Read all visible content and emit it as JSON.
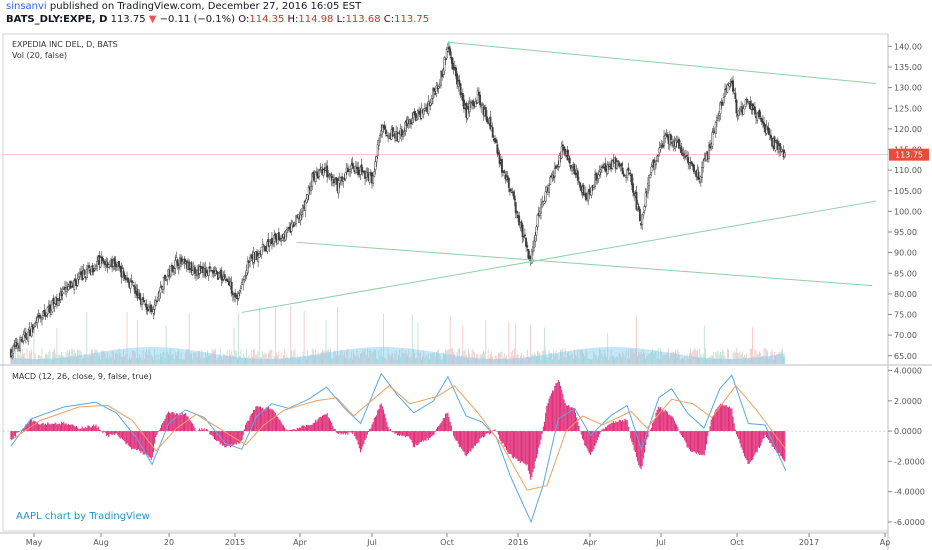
{
  "header": {
    "user": "sinsanvi",
    "published": "published on TradingView.com, December 27, 2016 16:05 EST",
    "symbol": "BATS_DLY:EXPE, D",
    "last": "113.75",
    "arrow": "▼",
    "change": "−0.11 (−0.1%)",
    "o_label": "O:",
    "o_value": "114.35",
    "h_label": "H:",
    "h_value": "114.98",
    "l_label": "L:",
    "l_value": "113.68",
    "c_label": "C:",
    "c_value": "113.75"
  },
  "colors": {
    "up": "#26a69a",
    "down": "#ef5350",
    "candle_body": "#3d3d3d",
    "trendline": "#8ecfa8",
    "volume": "#7fc8e8",
    "macd": "#5aa8e6",
    "signal": "#f0a060",
    "histogram": "#e0307a",
    "price_badge": "#e74c3c"
  },
  "chart_data": [
    {
      "type": "candlestick",
      "legend": [
        "EXPEDIA INC DEL, D, BATS",
        "Vol (20, false)"
      ],
      "ylim": [
        63,
        143
      ],
      "y_ticks": [
        "140.00",
        "135.00",
        "130.00",
        "125.00",
        "120.00",
        "115.00",
        "110.00",
        "105.00",
        "100.00",
        "95.00",
        "90.00",
        "85.00",
        "80.00",
        "75.00",
        "70.00",
        "65.00"
      ],
      "last_price_label": "113.75",
      "x_ticks": [
        "May",
        "Aug",
        "20",
        "2015",
        "Apr",
        "Jul",
        "Oct",
        "2016",
        "Apr",
        "Jul",
        "Oct",
        "2017",
        "Ap"
      ],
      "price_path": [
        [
          "2014-04-25",
          66
        ],
        [
          "2014-05-15",
          70
        ],
        [
          "2014-06-10",
          76
        ],
        [
          "2014-07-10",
          82
        ],
        [
          "2014-08-15",
          88
        ],
        [
          "2014-09-05",
          87
        ],
        [
          "2014-10-01",
          80
        ],
        [
          "2014-10-20",
          75
        ],
        [
          "2014-11-01",
          82
        ],
        [
          "2014-11-20",
          88
        ],
        [
          "2014-12-10",
          86
        ],
        [
          "2015-01-05",
          85
        ],
        [
          "2015-01-20",
          84
        ],
        [
          "2015-02-05",
          79
        ],
        [
          "2015-02-20",
          88
        ],
        [
          "2015-03-15",
          92
        ],
        [
          "2015-04-10",
          95
        ],
        [
          "2015-04-28",
          100
        ],
        [
          "2015-05-10",
          108
        ],
        [
          "2015-05-25",
          110
        ],
        [
          "2015-06-10",
          106
        ],
        [
          "2015-06-28",
          111
        ],
        [
          "2015-07-25",
          108
        ],
        [
          "2015-08-05",
          120
        ],
        [
          "2015-08-25",
          118
        ],
        [
          "2015-09-10",
          122
        ],
        [
          "2015-10-01",
          125
        ],
        [
          "2015-10-20",
          133
        ],
        [
          "2015-10-28",
          140
        ],
        [
          "2015-11-05",
          134
        ],
        [
          "2015-11-20",
          124
        ],
        [
          "2015-12-05",
          128
        ],
        [
          "2015-12-20",
          121
        ],
        [
          "2016-01-05",
          110
        ],
        [
          "2016-01-20",
          102
        ],
        [
          "2016-02-09",
          88
        ],
        [
          "2016-02-20",
          100
        ],
        [
          "2016-03-05",
          107
        ],
        [
          "2016-03-20",
          115
        ],
        [
          "2016-04-05",
          110
        ],
        [
          "2016-04-20",
          103
        ],
        [
          "2016-05-05",
          110
        ],
        [
          "2016-05-25",
          112
        ],
        [
          "2016-06-15",
          108
        ],
        [
          "2016-06-27",
          97
        ],
        [
          "2016-07-10",
          110
        ],
        [
          "2016-07-28",
          118
        ],
        [
          "2016-08-10",
          117
        ],
        [
          "2016-08-25",
          113
        ],
        [
          "2016-09-10",
          108
        ],
        [
          "2016-09-25",
          118
        ],
        [
          "2016-10-05",
          125
        ],
        [
          "2016-10-15",
          130
        ],
        [
          "2016-10-20",
          132
        ],
        [
          "2016-10-27",
          123
        ],
        [
          "2016-11-10",
          127
        ],
        [
          "2016-11-25",
          122
        ],
        [
          "2016-12-10",
          117
        ],
        [
          "2016-12-27",
          113.75
        ]
      ],
      "trendlines": [
        {
          "from": [
            "2015-10-28",
            141
          ],
          "to": [
            "2017-04-20",
            131
          ]
        },
        {
          "from": [
            "2015-04-20",
            92.5
          ],
          "to": [
            "2017-04-15",
            82
          ]
        },
        {
          "from": [
            "2015-02-10",
            75.5
          ],
          "to": [
            "2017-04-20",
            102.5
          ]
        }
      ]
    },
    {
      "type": "macd",
      "legend": "MACD (12, 26, close, 9, false, true)",
      "ylim": [
        -6.6,
        4.3
      ],
      "y_ticks": [
        "4.0000",
        "2.0000",
        "0.0000",
        "-2.0000",
        "-4.0000",
        "-6.0000"
      ],
      "series": [
        {
          "name": "MACD",
          "points": [
            [
              "2014-04-25",
              -1.0
            ],
            [
              "2014-05-20",
              0.8
            ],
            [
              "2014-07-01",
              1.6
            ],
            [
              "2014-08-10",
              1.9
            ],
            [
              "2014-09-05",
              1.2
            ],
            [
              "2014-10-01",
              -0.5
            ],
            [
              "2014-10-20",
              -2.2
            ],
            [
              "2014-11-10",
              0.5
            ],
            [
              "2014-12-01",
              1.4
            ],
            [
              "2014-12-25",
              0.9
            ],
            [
              "2015-01-20",
              -0.8
            ],
            [
              "2015-02-10",
              -1.2
            ],
            [
              "2015-03-01",
              1.0
            ],
            [
              "2015-03-20",
              1.8
            ],
            [
              "2015-04-10",
              1.5
            ],
            [
              "2015-05-05",
              2.1
            ],
            [
              "2015-05-28",
              2.9
            ],
            [
              "2015-06-20",
              1.5
            ],
            [
              "2015-07-10",
              0.5
            ],
            [
              "2015-08-05",
              3.8
            ],
            [
              "2015-08-25",
              2.4
            ],
            [
              "2015-09-15",
              1.2
            ],
            [
              "2015-10-10",
              2.0
            ],
            [
              "2015-10-28",
              3.6
            ],
            [
              "2015-11-20",
              1.0
            ],
            [
              "2015-12-10",
              0.6
            ],
            [
              "2015-12-28",
              -0.4
            ],
            [
              "2016-01-15",
              -3.0
            ],
            [
              "2016-02-10",
              -6.0
            ],
            [
              "2016-02-25",
              -3.6
            ],
            [
              "2016-03-15",
              0.8
            ],
            [
              "2016-04-05",
              1.5
            ],
            [
              "2016-04-25",
              -0.3
            ],
            [
              "2016-05-20",
              1.0
            ],
            [
              "2016-06-10",
              1.7
            ],
            [
              "2016-06-28",
              -1.2
            ],
            [
              "2016-07-20",
              2.2
            ],
            [
              "2016-08-05",
              2.8
            ],
            [
              "2016-08-25",
              1.2
            ],
            [
              "2016-09-15",
              0.2
            ],
            [
              "2016-10-05",
              2.8
            ],
            [
              "2016-10-20",
              3.7
            ],
            [
              "2016-11-10",
              0.5
            ],
            [
              "2016-12-01",
              0.4
            ],
            [
              "2016-12-27",
              -2.6
            ]
          ]
        },
        {
          "name": "Signal",
          "points": [
            [
              "2014-04-25",
              -0.6
            ],
            [
              "2014-06-01",
              0.7
            ],
            [
              "2014-07-20",
              1.6
            ],
            [
              "2014-08-25",
              1.7
            ],
            [
              "2014-09-25",
              0.7
            ],
            [
              "2014-10-25",
              -1.3
            ],
            [
              "2014-11-20",
              0.2
            ],
            [
              "2014-12-15",
              1.1
            ],
            [
              "2015-01-15",
              0.1
            ],
            [
              "2015-02-15",
              -0.9
            ],
            [
              "2015-03-10",
              0.4
            ],
            [
              "2015-04-05",
              1.4
            ],
            [
              "2015-05-15",
              2.0
            ],
            [
              "2015-06-10",
              2.2
            ],
            [
              "2015-07-01",
              1.0
            ],
            [
              "2015-08-15",
              3.0
            ],
            [
              "2015-09-10",
              1.8
            ],
            [
              "2015-10-15",
              2.3
            ],
            [
              "2015-11-05",
              3.0
            ],
            [
              "2015-12-05",
              1.2
            ],
            [
              "2016-01-05",
              -1.0
            ],
            [
              "2016-02-05",
              -3.9
            ],
            [
              "2016-03-01",
              -3.6
            ],
            [
              "2016-03-25",
              0.0
            ],
            [
              "2016-04-15",
              1.0
            ],
            [
              "2016-05-10",
              0.4
            ],
            [
              "2016-06-15",
              1.3
            ],
            [
              "2016-07-05",
              0.2
            ],
            [
              "2016-08-05",
              2.1
            ],
            [
              "2016-09-01",
              1.8
            ],
            [
              "2016-09-25",
              0.9
            ],
            [
              "2016-10-25",
              3.0
            ],
            [
              "2016-11-20",
              1.4
            ],
            [
              "2016-12-27",
              -1.2
            ]
          ]
        }
      ]
    }
  ],
  "watermark": "AAPL chart by TradingView"
}
